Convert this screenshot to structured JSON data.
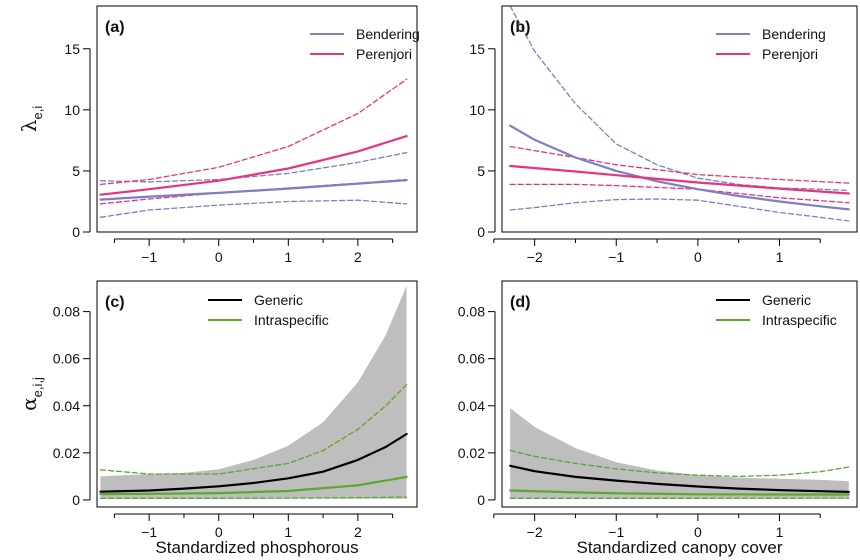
{
  "chart_data": [
    {
      "panel": "(a)",
      "type": "line",
      "xlabel": "",
      "ylabel_symbol": "λ",
      "ylabel_subscript": "e,i",
      "xlim": [
        -1.75,
        2.85
      ],
      "ylim": [
        0,
        18.5
      ],
      "xticks": [
        -1,
        0,
        1,
        2
      ],
      "yticks": [
        0,
        5,
        10,
        15
      ],
      "legend": "top-right",
      "grid": false,
      "series": [
        {
          "name": "Bendering",
          "color": "#7B7FC4",
          "role": "mean",
          "x": [
            -1.7,
            -1,
            0,
            1,
            2,
            2.7
          ],
          "y": [
            2.65,
            2.9,
            3.2,
            3.55,
            3.95,
            4.25
          ]
        },
        {
          "name": "",
          "color": "#7B7FC4",
          "role": "ci",
          "x": [
            -1.7,
            -1,
            0,
            1,
            2,
            2.7
          ],
          "y": [
            1.2,
            1.8,
            2.2,
            2.5,
            2.6,
            2.3
          ]
        },
        {
          "name": "",
          "color": "#7B7FC4",
          "role": "ci",
          "x": [
            -1.7,
            -1,
            0,
            1,
            2,
            2.7
          ],
          "y": [
            4.2,
            4.1,
            4.3,
            4.8,
            5.7,
            6.5
          ]
        },
        {
          "name": "Perenjori",
          "color": "#E8337F",
          "role": "mean",
          "x": [
            -1.7,
            -1,
            0,
            1,
            2,
            2.7
          ],
          "y": [
            3.05,
            3.5,
            4.2,
            5.2,
            6.6,
            7.85
          ]
        },
        {
          "name": "",
          "color": "#E8337F",
          "role": "ci",
          "x": [
            -1.7,
            -1,
            0,
            1,
            2,
            2.7
          ],
          "y": [
            2.3,
            2.7,
            3.2,
            3.6,
            4.0,
            4.3
          ]
        },
        {
          "name": "",
          "color": "#E8337F",
          "role": "ci",
          "x": [
            -1.7,
            -1,
            0,
            1,
            2,
            2.7
          ],
          "y": [
            3.9,
            4.3,
            5.3,
            7.0,
            9.7,
            12.5
          ]
        }
      ]
    },
    {
      "panel": "(b)",
      "type": "line",
      "xlabel": "",
      "ylabel_symbol": "",
      "ylabel_subscript": "",
      "xlim": [
        -2.4,
        1.95
      ],
      "ylim": [
        0,
        18.5
      ],
      "xticks": [
        -2,
        -1,
        0,
        1
      ],
      "yticks": [
        0,
        5,
        10,
        15
      ],
      "legend": "top-right",
      "grid": false,
      "series": [
        {
          "name": "Bendering",
          "color": "#7B7FC4",
          "role": "mean",
          "x": [
            -2.3,
            -2,
            -1.5,
            -1,
            -0.5,
            0,
            0.5,
            1,
            1.5,
            1.85
          ],
          "y": [
            8.7,
            7.55,
            6.1,
            5.0,
            4.15,
            3.5,
            2.95,
            2.5,
            2.1,
            1.85
          ]
        },
        {
          "name": "",
          "color": "#7B7FC4",
          "role": "ci",
          "x": [
            -2.3,
            -2,
            -1.5,
            -1,
            -0.5,
            0,
            0.5,
            1,
            1.5,
            1.85
          ],
          "y": [
            1.8,
            2.0,
            2.4,
            2.65,
            2.7,
            2.6,
            2.1,
            1.6,
            1.2,
            0.9
          ]
        },
        {
          "name": "",
          "color": "#7B7FC4",
          "role": "ci",
          "x": [
            -2.3,
            -2,
            -1.5,
            -1,
            -0.5,
            0,
            0.5,
            1,
            1.5,
            1.85
          ],
          "y": [
            18.5,
            14.8,
            10.5,
            7.2,
            5.5,
            4.4,
            3.9,
            3.6,
            3.5,
            3.4
          ]
        },
        {
          "name": "Perenjori",
          "color": "#E8337F",
          "role": "mean",
          "x": [
            -2.3,
            -1.5,
            -1,
            0,
            1,
            1.85
          ],
          "y": [
            5.4,
            4.95,
            4.65,
            4.05,
            3.55,
            3.15
          ]
        },
        {
          "name": "",
          "color": "#E8337F",
          "role": "ci",
          "x": [
            -2.3,
            -1.5,
            -1,
            0,
            1,
            1.85
          ],
          "y": [
            3.9,
            3.9,
            3.8,
            3.5,
            2.8,
            2.4
          ]
        },
        {
          "name": "",
          "color": "#E8337F",
          "role": "ci",
          "x": [
            -2.3,
            -1.5,
            -1,
            0,
            1,
            1.85
          ],
          "y": [
            7.0,
            6.1,
            5.5,
            4.7,
            4.3,
            4.0
          ]
        }
      ]
    },
    {
      "panel": "(c)",
      "type": "area",
      "xlabel": "Standardized phosphorous",
      "ylabel_symbol": "α",
      "ylabel_subscript": "e,i,j",
      "xlim": [
        -1.75,
        2.85
      ],
      "ylim": [
        -0.003,
        0.093
      ],
      "xticks": [
        -1,
        0,
        1,
        2
      ],
      "yticks": [
        0.0,
        0.02,
        0.04,
        0.06,
        0.08
      ],
      "legend": "top-center",
      "grid": false,
      "band": {
        "color": "#BEBEBE",
        "x": [
          -1.7,
          -1,
          -0.5,
          0,
          0.5,
          1,
          1.5,
          2,
          2.4,
          2.7
        ],
        "lower": [
          0.0005,
          0.0005,
          0.0005,
          0.0005,
          0.0005,
          0.0005,
          0.0005,
          0.0005,
          0.0005,
          0.0005
        ],
        "upper": [
          0.01,
          0.011,
          0.0115,
          0.013,
          0.017,
          0.023,
          0.033,
          0.05,
          0.07,
          0.091
        ]
      },
      "series": [
        {
          "name": "Generic",
          "color": "#000000",
          "role": "mean",
          "x": [
            -1.7,
            -1,
            -0.5,
            0,
            0.5,
            1,
            1.5,
            2,
            2.4,
            2.7
          ],
          "y": [
            0.0035,
            0.004,
            0.0048,
            0.0058,
            0.0072,
            0.0092,
            0.012,
            0.017,
            0.0225,
            0.028
          ]
        },
        {
          "name": "Intraspecific",
          "color": "#5BA82C",
          "role": "mean",
          "x": [
            -1.7,
            -1,
            0,
            1,
            2,
            2.7
          ],
          "y": [
            0.0025,
            0.0026,
            0.0029,
            0.0038,
            0.0062,
            0.0098
          ]
        },
        {
          "name": "",
          "color": "#5BA82C",
          "role": "ci",
          "x": [
            -1.7,
            -1,
            0,
            1,
            1.5,
            2,
            2.4,
            2.7
          ],
          "y": [
            0.0128,
            0.011,
            0.011,
            0.0155,
            0.021,
            0.03,
            0.04,
            0.049
          ]
        },
        {
          "name": "",
          "color": "#5BA82C",
          "role": "ci",
          "x": [
            -1.7,
            0,
            1,
            2,
            2.7
          ],
          "y": [
            0.0007,
            0.0007,
            0.0008,
            0.001,
            0.0012
          ]
        }
      ]
    },
    {
      "panel": "(d)",
      "type": "area",
      "xlabel": "Standardized canopy cover",
      "ylabel_symbol": "",
      "ylabel_subscript": "",
      "xlim": [
        -2.4,
        1.95
      ],
      "ylim": [
        -0.003,
        0.093
      ],
      "xticks": [
        -2,
        -1,
        0,
        1
      ],
      "yticks": [
        0.0,
        0.02,
        0.04,
        0.06,
        0.08
      ],
      "legend": "top-right",
      "grid": false,
      "band": {
        "color": "#BEBEBE",
        "x": [
          -2.3,
          -2,
          -1.5,
          -1,
          -0.5,
          0,
          0.5,
          1,
          1.5,
          1.85
        ],
        "lower": [
          0.0005,
          0.0005,
          0.0005,
          0.0005,
          0.0005,
          0.0005,
          0.0005,
          0.0005,
          0.0005,
          0.0005
        ],
        "upper": [
          0.039,
          0.031,
          0.022,
          0.016,
          0.0125,
          0.0105,
          0.0095,
          0.009,
          0.0085,
          0.008
        ]
      },
      "series": [
        {
          "name": "Generic",
          "color": "#000000",
          "role": "mean",
          "x": [
            -2.3,
            -2,
            -1.5,
            -1,
            -0.5,
            0,
            0.5,
            1,
            1.5,
            1.85
          ],
          "y": [
            0.0145,
            0.0122,
            0.0098,
            0.0082,
            0.0068,
            0.0057,
            0.0048,
            0.0042,
            0.0037,
            0.0034
          ]
        },
        {
          "name": "Intraspecific",
          "color": "#5BA82C",
          "role": "mean",
          "x": [
            -2.3,
            -1.5,
            -1,
            0,
            1,
            1.85
          ],
          "y": [
            0.004,
            0.0032,
            0.0028,
            0.0024,
            0.0023,
            0.0023
          ]
        },
        {
          "name": "",
          "color": "#5BA82C",
          "role": "ci",
          "x": [
            -2.3,
            -2,
            -1.5,
            -1,
            -0.5,
            0,
            0.5,
            1,
            1.5,
            1.85
          ],
          "y": [
            0.021,
            0.0185,
            0.0155,
            0.0132,
            0.0115,
            0.0105,
            0.01,
            0.0105,
            0.012,
            0.014
          ]
        },
        {
          "name": "",
          "color": "#5BA82C",
          "role": "ci",
          "x": [
            -2.3,
            0,
            1.85
          ],
          "y": [
            0.0007,
            0.0007,
            0.0008
          ]
        }
      ]
    }
  ]
}
